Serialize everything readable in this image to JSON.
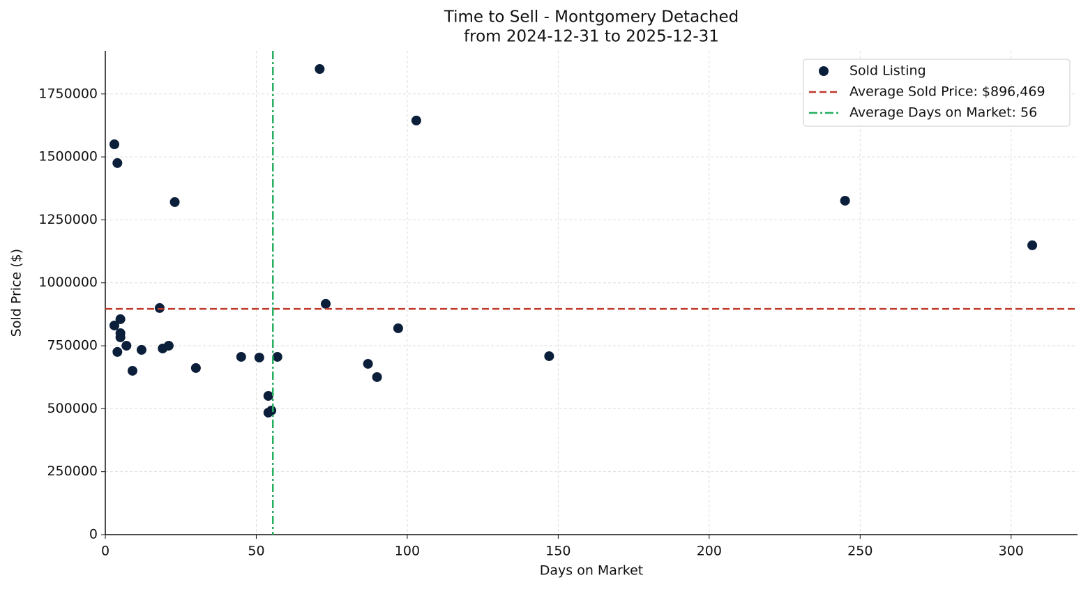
{
  "chart_data": {
    "type": "scatter",
    "title": [
      "Time to Sell - Montgomery Detached",
      "from 2024-12-31 to 2025-12-31"
    ],
    "xlabel": "Days on Market",
    "ylabel": "Sold Price ($)",
    "xlim": [
      0,
      322
    ],
    "ylim": [
      0,
      1921000
    ],
    "xticks": [
      0,
      50,
      100,
      150,
      200,
      250,
      300
    ],
    "yticks": [
      0,
      250000,
      500000,
      750000,
      1000000,
      1250000,
      1500000,
      1750000
    ],
    "grid": true,
    "legend": "upper right",
    "series": [
      {
        "name": "Sold Listing",
        "color": "#0b1f3a",
        "x": [
          3,
          4,
          23,
          71,
          103,
          245,
          307,
          3,
          5,
          18,
          5,
          5,
          7,
          4,
          9,
          12,
          19,
          21,
          30,
          45,
          51,
          57,
          54,
          54,
          55,
          73,
          87,
          90,
          97,
          147
        ],
        "y": [
          1550000,
          1475600,
          1320600,
          1849000,
          1644500,
          1326000,
          1149000,
          830500,
          855500,
          899800,
          800100,
          783500,
          750300,
          725400,
          650600,
          733700,
          739200,
          750300,
          661700,
          706000,
          703200,
          706000,
          551000,
          484500,
          492800,
          916400,
          678300,
          625700,
          819500,
          708700
        ]
      }
    ],
    "hlines": [
      {
        "name": "Average Sold Price: $896,469",
        "value": 896469,
        "color": "#c0392b",
        "style": "dashed"
      }
    ],
    "vlines": [
      {
        "name": "Average Days on Market: 56",
        "value": 55.5,
        "color": "#27ae60",
        "style": "dashdot"
      }
    ]
  }
}
